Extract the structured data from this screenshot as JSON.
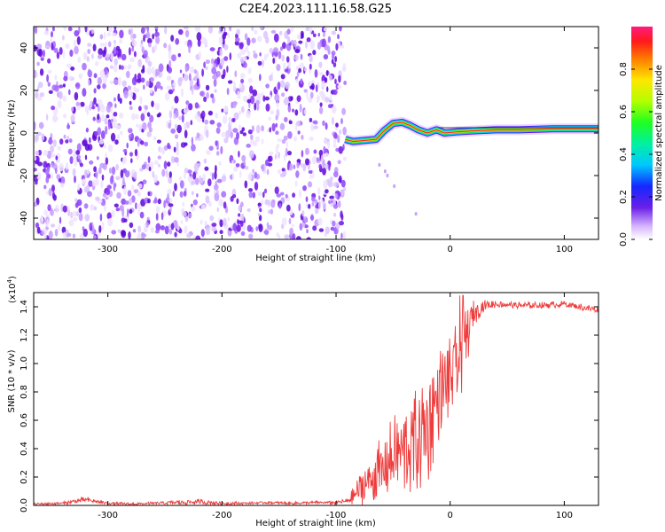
{
  "title": "C2E4.2023.111.16.58.G25",
  "colors": {
    "signal_red": "#ee3b3b",
    "noise_purple": "#7a1fe6",
    "axis": "#000000",
    "tone_line": "#1a1a1a"
  },
  "chart_data": [
    {
      "type": "heatmap",
      "xlabel": "Height of straight line (km)",
      "ylabel": "Frequency (Hz)",
      "xlim": [
        -365,
        130
      ],
      "ylim": [
        -50,
        50
      ],
      "x_ticks": [
        -300,
        -200,
        -100,
        0,
        100
      ],
      "x_tick_labels": [
        "-300",
        "-200",
        "-100",
        "0",
        "100"
      ],
      "y_ticks": [
        -40,
        -20,
        0,
        20,
        40
      ],
      "y_tick_labels": [
        "-40",
        "-20",
        "0",
        "20",
        "40"
      ],
      "noise_region_x": [
        -365,
        -92
      ],
      "tone_track": {
        "x": [
          -92,
          -85,
          -75,
          -65,
          -58,
          -50,
          -42,
          -35,
          -28,
          -20,
          -12,
          -5,
          5,
          20,
          40,
          60,
          90,
          130
        ],
        "freq": [
          -3,
          -4,
          -3.5,
          -3,
          1,
          4.5,
          5,
          3.5,
          1.5,
          0,
          1.5,
          0,
          0.5,
          1,
          1.5,
          1.5,
          2,
          2
        ]
      },
      "colorbar": {
        "label": "Normalized spectral amplitude",
        "range": [
          0,
          1
        ],
        "ticks": [
          0.0,
          0.2,
          0.4,
          0.6,
          0.8
        ],
        "tick_labels": [
          "0.0",
          "0.2",
          "0.4",
          "0.6",
          "0.8"
        ]
      }
    },
    {
      "type": "line",
      "xlabel": "Height of straight line (km)",
      "ylabel": "SNR (10 * v/v)",
      "y_multiplier": "(x10",
      "y_multiplier_exp": "4",
      "y_multiplier_close": ")",
      "xlim": [
        -365,
        130
      ],
      "ylim": [
        0,
        1.5
      ],
      "x_ticks": [
        -300,
        -200,
        -100,
        0,
        100
      ],
      "x_tick_labels": [
        "-300",
        "-200",
        "-100",
        "0",
        "100"
      ],
      "y_ticks": [
        0.0,
        0.2,
        0.4,
        0.6,
        0.8,
        1.0,
        1.2,
        1.4
      ],
      "y_tick_labels": [
        "0.0",
        "0.2",
        "0.4",
        "0.6",
        "0.8",
        "1.0",
        "1.2",
        "1.4"
      ],
      "series": [
        {
          "name": "SNR",
          "x": [
            -365,
            -340,
            -320,
            -300,
            -280,
            -260,
            -240,
            -220,
            -200,
            -180,
            -160,
            -140,
            -120,
            -100,
            -90,
            -70,
            -60,
            -50,
            -40,
            -30,
            -20,
            -10,
            0,
            10,
            20,
            30,
            40,
            60,
            80,
            100,
            120,
            130
          ],
          "base": [
            0.01,
            0.015,
            0.04,
            0.015,
            0.01,
            0.015,
            0.02,
            0.025,
            0.015,
            0.015,
            0.02,
            0.015,
            0.02,
            0.02,
            0.03,
            0.18,
            0.25,
            0.35,
            0.38,
            0.45,
            0.55,
            0.78,
            0.9,
            1.05,
            1.35,
            1.41,
            1.42,
            1.41,
            1.41,
            1.42,
            1.39,
            1.38
          ],
          "spread": [
            0.01,
            0.01,
            0.02,
            0.01,
            0.01,
            0.01,
            0.02,
            0.02,
            0.015,
            0.01,
            0.01,
            0.01,
            0.01,
            0.015,
            0.02,
            0.2,
            0.25,
            0.3,
            0.35,
            0.4,
            0.45,
            0.35,
            0.3,
            0.35,
            0.1,
            0.04,
            0.03,
            0.025,
            0.025,
            0.025,
            0.03,
            0.03
          ]
        }
      ]
    }
  ]
}
